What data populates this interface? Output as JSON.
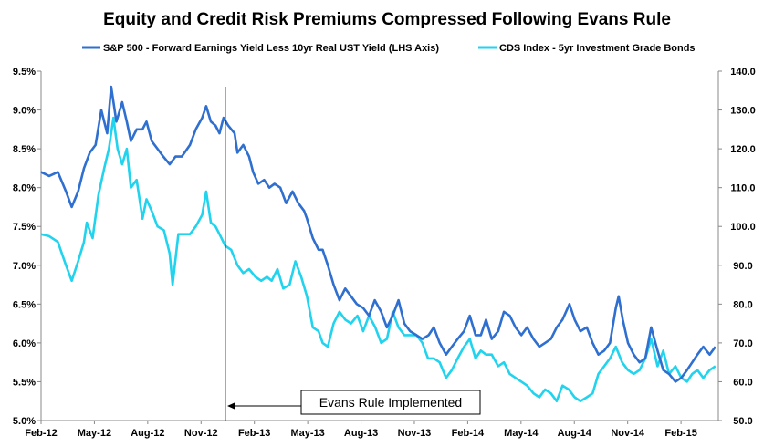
{
  "chart_data": {
    "type": "line",
    "title": "Equity and Credit Risk Premiums Compressed Following  Evans Rule",
    "x_range": [
      "2012-02-01",
      "2015-04-15"
    ],
    "x_ticks": [
      "Feb-12",
      "May-12",
      "Aug-12",
      "Nov-12",
      "Feb-13",
      "May-13",
      "Aug-13",
      "Nov-13",
      "Feb-14",
      "May-14",
      "Aug-14",
      "Nov-14",
      "Feb-15"
    ],
    "y_left": {
      "min": 5.0,
      "max": 9.5,
      "step": 0.5,
      "format": "percent",
      "ticks": [
        "5.0%",
        "5.5%",
        "6.0%",
        "6.5%",
        "7.0%",
        "7.5%",
        "8.0%",
        "8.5%",
        "9.0%",
        "9.5%"
      ]
    },
    "y_right": {
      "min": 50,
      "max": 140,
      "step": 10,
      "ticks": [
        "50.0",
        "60.0",
        "70.0",
        "80.0",
        "90.0",
        "100.0",
        "110.0",
        "120.0",
        "130.0",
        "140.0"
      ]
    },
    "grid": false,
    "legend_position": "top",
    "series": [
      {
        "name": "S&P 500 - Forward Earnings Yield Less 10yr Real UST Yield (LHS Axis)",
        "axis": "left",
        "color": "#2f6fd0",
        "points": [
          [
            "2012-02-01",
            8.2
          ],
          [
            "2012-02-15",
            8.15
          ],
          [
            "2012-03-01",
            8.2
          ],
          [
            "2012-03-15",
            7.95
          ],
          [
            "2012-03-25",
            7.75
          ],
          [
            "2012-04-05",
            7.95
          ],
          [
            "2012-04-15",
            8.25
          ],
          [
            "2012-04-25",
            8.45
          ],
          [
            "2012-05-05",
            8.55
          ],
          [
            "2012-05-15",
            9.0
          ],
          [
            "2012-05-25",
            8.7
          ],
          [
            "2012-06-01",
            9.3
          ],
          [
            "2012-06-10",
            8.85
          ],
          [
            "2012-06-20",
            9.1
          ],
          [
            "2012-06-28",
            8.85
          ],
          [
            "2012-07-05",
            8.6
          ],
          [
            "2012-07-15",
            8.75
          ],
          [
            "2012-07-25",
            8.75
          ],
          [
            "2012-08-01",
            8.85
          ],
          [
            "2012-08-10",
            8.6
          ],
          [
            "2012-08-20",
            8.5
          ],
          [
            "2012-08-30",
            8.4
          ],
          [
            "2012-09-10",
            8.3
          ],
          [
            "2012-09-20",
            8.4
          ],
          [
            "2012-10-01",
            8.4
          ],
          [
            "2012-10-15",
            8.55
          ],
          [
            "2012-10-25",
            8.75
          ],
          [
            "2012-11-05",
            8.9
          ],
          [
            "2012-11-12",
            9.05
          ],
          [
            "2012-11-20",
            8.85
          ],
          [
            "2012-11-28",
            8.8
          ],
          [
            "2012-12-05",
            8.7
          ],
          [
            "2012-12-12",
            8.9
          ],
          [
            "2012-12-20",
            8.8
          ],
          [
            "2012-12-31",
            8.7
          ],
          [
            "2013-01-05",
            8.45
          ],
          [
            "2013-01-15",
            8.55
          ],
          [
            "2013-01-25",
            8.4
          ],
          [
            "2013-02-01",
            8.2
          ],
          [
            "2013-02-10",
            8.05
          ],
          [
            "2013-02-20",
            8.1
          ],
          [
            "2013-03-01",
            8.0
          ],
          [
            "2013-03-10",
            8.05
          ],
          [
            "2013-03-20",
            8.0
          ],
          [
            "2013-03-30",
            7.8
          ],
          [
            "2013-04-10",
            7.95
          ],
          [
            "2013-04-20",
            7.8
          ],
          [
            "2013-04-30",
            7.7
          ],
          [
            "2013-05-05",
            7.6
          ],
          [
            "2013-05-15",
            7.35
          ],
          [
            "2013-05-25",
            7.2
          ],
          [
            "2013-06-01",
            7.2
          ],
          [
            "2013-06-10",
            7.0
          ],
          [
            "2013-06-20",
            6.75
          ],
          [
            "2013-06-30",
            6.55
          ],
          [
            "2013-07-10",
            6.7
          ],
          [
            "2013-07-20",
            6.6
          ],
          [
            "2013-07-30",
            6.5
          ],
          [
            "2013-08-10",
            6.45
          ],
          [
            "2013-08-20",
            6.35
          ],
          [
            "2013-08-30",
            6.55
          ],
          [
            "2013-09-10",
            6.4
          ],
          [
            "2013-09-20",
            6.2
          ],
          [
            "2013-09-30",
            6.35
          ],
          [
            "2013-10-10",
            6.55
          ],
          [
            "2013-10-20",
            6.25
          ],
          [
            "2013-10-30",
            6.15
          ],
          [
            "2013-11-10",
            6.1
          ],
          [
            "2013-11-20",
            6.05
          ],
          [
            "2013-12-01",
            6.1
          ],
          [
            "2013-12-10",
            6.2
          ],
          [
            "2013-12-20",
            6.0
          ],
          [
            "2013-12-31",
            5.85
          ],
          [
            "2014-01-10",
            5.95
          ],
          [
            "2014-01-20",
            6.05
          ],
          [
            "2014-01-31",
            6.15
          ],
          [
            "2014-02-10",
            6.35
          ],
          [
            "2014-02-20",
            6.1
          ],
          [
            "2014-03-01",
            6.1
          ],
          [
            "2014-03-10",
            6.3
          ],
          [
            "2014-03-20",
            6.05
          ],
          [
            "2014-03-31",
            6.15
          ],
          [
            "2014-04-10",
            6.4
          ],
          [
            "2014-04-20",
            6.35
          ],
          [
            "2014-04-30",
            6.2
          ],
          [
            "2014-05-10",
            6.1
          ],
          [
            "2014-05-20",
            6.2
          ],
          [
            "2014-05-31",
            6.05
          ],
          [
            "2014-06-10",
            5.95
          ],
          [
            "2014-06-20",
            6.0
          ],
          [
            "2014-06-30",
            6.05
          ],
          [
            "2014-07-10",
            6.2
          ],
          [
            "2014-07-20",
            6.3
          ],
          [
            "2014-08-01",
            6.5
          ],
          [
            "2014-08-10",
            6.3
          ],
          [
            "2014-08-20",
            6.15
          ],
          [
            "2014-08-31",
            6.2
          ],
          [
            "2014-09-10",
            6.0
          ],
          [
            "2014-09-20",
            5.85
          ],
          [
            "2014-09-30",
            5.9
          ],
          [
            "2014-10-10",
            6.0
          ],
          [
            "2014-10-20",
            6.45
          ],
          [
            "2014-10-25",
            6.6
          ],
          [
            "2014-11-01",
            6.3
          ],
          [
            "2014-11-10",
            6.0
          ],
          [
            "2014-11-20",
            5.85
          ],
          [
            "2014-11-30",
            5.75
          ],
          [
            "2014-12-10",
            5.8
          ],
          [
            "2014-12-20",
            6.2
          ],
          [
            "2014-12-31",
            5.9
          ],
          [
            "2015-01-10",
            5.65
          ],
          [
            "2015-01-20",
            5.6
          ],
          [
            "2015-01-31",
            5.5
          ],
          [
            "2015-02-10",
            5.55
          ],
          [
            "2015-02-20",
            5.65
          ],
          [
            "2015-03-01",
            5.75
          ],
          [
            "2015-03-10",
            5.85
          ],
          [
            "2015-03-20",
            5.95
          ],
          [
            "2015-03-31",
            5.85
          ],
          [
            "2015-04-10",
            5.95
          ]
        ]
      },
      {
        "name": "CDS Index - 5yr Investment Grade Bonds",
        "axis": "right",
        "color": "#22d3ee",
        "points": [
          [
            "2012-02-01",
            98
          ],
          [
            "2012-02-15",
            97.5
          ],
          [
            "2012-03-01",
            96
          ],
          [
            "2012-03-15",
            90
          ],
          [
            "2012-03-25",
            86
          ],
          [
            "2012-04-05",
            91
          ],
          [
            "2012-04-15",
            96
          ],
          [
            "2012-04-20",
            101
          ],
          [
            "2012-04-30",
            97
          ],
          [
            "2012-05-10",
            108
          ],
          [
            "2012-05-20",
            115
          ],
          [
            "2012-05-28",
            120
          ],
          [
            "2012-06-05",
            128
          ],
          [
            "2012-06-12",
            120
          ],
          [
            "2012-06-20",
            116
          ],
          [
            "2012-06-28",
            120
          ],
          [
            "2012-07-05",
            110
          ],
          [
            "2012-07-15",
            112
          ],
          [
            "2012-07-25",
            102
          ],
          [
            "2012-08-01",
            107
          ],
          [
            "2012-08-10",
            104
          ],
          [
            "2012-08-20",
            100
          ],
          [
            "2012-08-31",
            99
          ],
          [
            "2012-09-10",
            93
          ],
          [
            "2012-09-15",
            85
          ],
          [
            "2012-09-25",
            98
          ],
          [
            "2012-10-05",
            98
          ],
          [
            "2012-10-15",
            98
          ],
          [
            "2012-10-25",
            100
          ],
          [
            "2012-11-05",
            103
          ],
          [
            "2012-11-12",
            109
          ],
          [
            "2012-11-20",
            101
          ],
          [
            "2012-11-28",
            100
          ],
          [
            "2012-12-05",
            98
          ],
          [
            "2012-12-15",
            95
          ],
          [
            "2012-12-25",
            94
          ],
          [
            "2013-01-05",
            90
          ],
          [
            "2013-01-15",
            88
          ],
          [
            "2013-01-25",
            89
          ],
          [
            "2013-02-05",
            87
          ],
          [
            "2013-02-15",
            86
          ],
          [
            "2013-02-25",
            87
          ],
          [
            "2013-03-05",
            86
          ],
          [
            "2013-03-15",
            89
          ],
          [
            "2013-03-25",
            84
          ],
          [
            "2013-04-05",
            85
          ],
          [
            "2013-04-15",
            91
          ],
          [
            "2013-04-25",
            87
          ],
          [
            "2013-05-05",
            82
          ],
          [
            "2013-05-15",
            74
          ],
          [
            "2013-05-25",
            73
          ],
          [
            "2013-06-01",
            70
          ],
          [
            "2013-06-10",
            69
          ],
          [
            "2013-06-20",
            75
          ],
          [
            "2013-06-30",
            78
          ],
          [
            "2013-07-10",
            76
          ],
          [
            "2013-07-20",
            75
          ],
          [
            "2013-07-31",
            77
          ],
          [
            "2013-08-10",
            73
          ],
          [
            "2013-08-20",
            77
          ],
          [
            "2013-08-31",
            74
          ],
          [
            "2013-09-10",
            70
          ],
          [
            "2013-09-20",
            71
          ],
          [
            "2013-09-30",
            78
          ],
          [
            "2013-10-10",
            74
          ],
          [
            "2013-10-20",
            72
          ],
          [
            "2013-10-31",
            72
          ],
          [
            "2013-11-10",
            72
          ],
          [
            "2013-11-20",
            70
          ],
          [
            "2013-11-30",
            66
          ],
          [
            "2013-12-10",
            66
          ],
          [
            "2013-12-20",
            65
          ],
          [
            "2013-12-31",
            61
          ],
          [
            "2014-01-10",
            63
          ],
          [
            "2014-01-20",
            66
          ],
          [
            "2014-01-31",
            69
          ],
          [
            "2014-02-10",
            71
          ],
          [
            "2014-02-20",
            66
          ],
          [
            "2014-03-01",
            68
          ],
          [
            "2014-03-10",
            67
          ],
          [
            "2014-03-20",
            67
          ],
          [
            "2014-03-31",
            64
          ],
          [
            "2014-04-10",
            65
          ],
          [
            "2014-04-20",
            62
          ],
          [
            "2014-04-30",
            61
          ],
          [
            "2014-05-10",
            60
          ],
          [
            "2014-05-20",
            59
          ],
          [
            "2014-05-31",
            57
          ],
          [
            "2014-06-10",
            56
          ],
          [
            "2014-06-20",
            58
          ],
          [
            "2014-06-30",
            57
          ],
          [
            "2014-07-10",
            55
          ],
          [
            "2014-07-20",
            59
          ],
          [
            "2014-07-31",
            58
          ],
          [
            "2014-08-10",
            56
          ],
          [
            "2014-08-20",
            55
          ],
          [
            "2014-08-31",
            56
          ],
          [
            "2014-09-10",
            57
          ],
          [
            "2014-09-20",
            62
          ],
          [
            "2014-09-30",
            64
          ],
          [
            "2014-10-10",
            66
          ],
          [
            "2014-10-20",
            69
          ],
          [
            "2014-10-31",
            65
          ],
          [
            "2014-11-10",
            63
          ],
          [
            "2014-11-20",
            62
          ],
          [
            "2014-11-30",
            63
          ],
          [
            "2014-12-10",
            66
          ],
          [
            "2014-12-20",
            71
          ],
          [
            "2014-12-31",
            64
          ],
          [
            "2015-01-10",
            68
          ],
          [
            "2015-01-20",
            62
          ],
          [
            "2015-01-31",
            64
          ],
          [
            "2015-02-10",
            61
          ],
          [
            "2015-02-20",
            60
          ],
          [
            "2015-03-01",
            62
          ],
          [
            "2015-03-10",
            63
          ],
          [
            "2015-03-20",
            61
          ],
          [
            "2015-03-31",
            63
          ],
          [
            "2015-04-10",
            64
          ]
        ]
      }
    ],
    "annotations": [
      {
        "text": "Evans Rule Implemented",
        "date": "2012-12-15"
      }
    ]
  }
}
